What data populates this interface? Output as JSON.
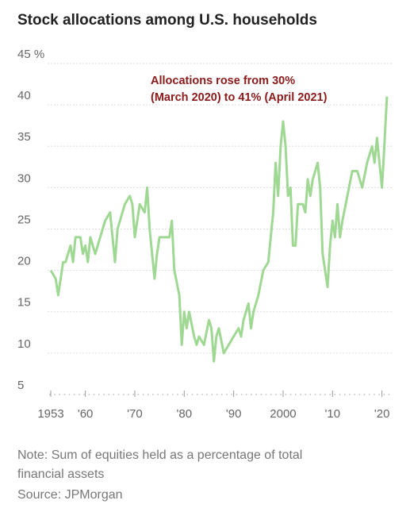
{
  "chart_data": {
    "type": "line",
    "title": "Stock allocations among U.S. households",
    "annotation": [
      "Allocations rose from 30%",
      "(March 2020) to 41% (April 2021)"
    ],
    "note": [
      "Note: Sum of equities held as a percentage of total",
      "financial assets"
    ],
    "source": "Source: JPMorgan",
    "x": [
      1953,
      1954,
      1954.5,
      1955,
      1955.5,
      1956,
      1957,
      1957.5,
      1958,
      1959,
      1959.5,
      1960,
      1960.5,
      1961,
      1962,
      1962.5,
      1963,
      1964,
      1965,
      1966,
      1966.5,
      1967,
      1968,
      1969,
      1969.5,
      1970,
      1971,
      1972,
      1972.5,
      1973,
      1974,
      1974.5,
      1975,
      1976,
      1977,
      1977.5,
      1978,
      1979,
      1979.5,
      1980,
      1980.5,
      1981,
      1982,
      1982.5,
      1983,
      1984,
      1985,
      1985.5,
      1986,
      1986.5,
      1987,
      1988,
      1989,
      1990,
      1991,
      1991.5,
      1992,
      1993,
      1993.5,
      1994,
      1995,
      1996,
      1997,
      1997.5,
      1998,
      1998.5,
      1999,
      1999.5,
      2000,
      2000.5,
      2001,
      2001.5,
      2002,
      2002.5,
      2003,
      2004,
      2004.5,
      2005,
      2005.5,
      2006,
      2007,
      2007.5,
      2008,
      2009,
      2009.5,
      2010,
      2010.5,
      2011,
      2011.5,
      2012,
      2013,
      2014,
      2015,
      2016,
      2017,
      2018,
      2018.5,
      2019,
      2020,
      2020.3,
      2021
    ],
    "series": [
      {
        "name": "Stock allocation",
        "color": "#9fd893",
        "values": [
          20,
          19,
          17,
          19,
          21,
          21,
          23,
          21,
          24,
          24,
          22,
          23,
          21,
          24,
          22,
          23,
          24,
          26,
          27,
          21,
          25,
          26,
          28,
          29,
          28,
          24,
          28,
          27,
          30,
          25,
          19,
          22,
          24,
          24,
          24,
          26,
          20,
          17,
          11,
          15,
          13,
          15,
          12,
          11,
          12,
          11,
          14,
          13,
          9,
          12,
          13,
          10,
          11,
          12,
          13,
          12,
          14,
          16,
          13,
          15,
          17,
          20,
          21,
          24,
          27,
          33,
          29,
          35,
          38,
          35,
          29,
          30,
          23,
          23,
          28,
          28,
          27,
          31,
          29,
          31,
          33,
          30,
          22,
          18,
          23,
          26,
          24,
          28,
          24,
          26,
          29,
          32,
          32,
          30,
          33,
          35,
          33,
          36,
          30,
          33,
          41
        ]
      }
    ],
    "xlim": [
      1953,
      2021.5
    ],
    "xticks": [
      {
        "value": 1953,
        "label": "1953"
      },
      {
        "value": 1960,
        "label": "'60"
      },
      {
        "value": 1970,
        "label": "'70"
      },
      {
        "value": 1980,
        "label": "'80"
      },
      {
        "value": 1990,
        "label": "'90"
      },
      2000,
      {
        "value": 2010,
        "label": "'10"
      },
      {
        "value": 2020,
        "label": "'20"
      }
    ],
    "ylim": [
      5,
      45
    ],
    "yticks": [
      5,
      10,
      15,
      20,
      25,
      30,
      35,
      40,
      {
        "value": 45,
        "label": "45 %"
      }
    ],
    "grid": true
  }
}
